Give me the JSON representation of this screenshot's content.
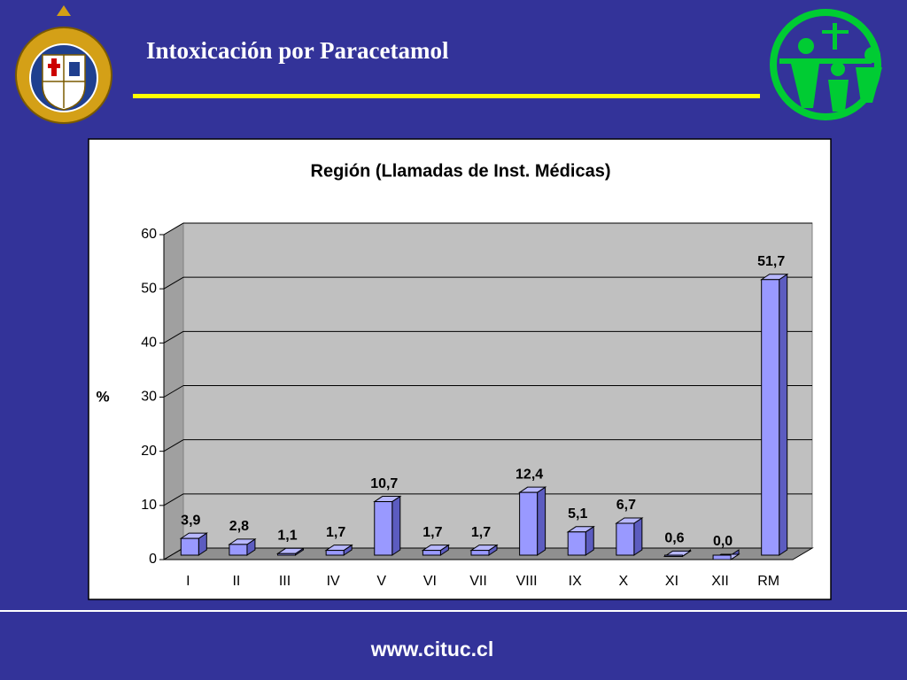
{
  "slide": {
    "title": "Intoxicación por Paracetamol",
    "footer": "www.cituc.cl"
  },
  "chart_data": {
    "type": "bar3d",
    "title": "Región (Llamadas de Inst. Médicas)",
    "y_label": "%",
    "categories": [
      "I",
      "II",
      "III",
      "IV",
      "V",
      "VI",
      "VII",
      "VIII",
      "IX",
      "X",
      "XI",
      "XII",
      "RM"
    ],
    "values": [
      3.9,
      2.8,
      1.1,
      1.7,
      10.7,
      1.7,
      1.7,
      12.4,
      5.1,
      6.7,
      0.6,
      0.0,
      51.7
    ],
    "value_labels": [
      "3,9",
      "2,8",
      "1,1",
      "1,7",
      "10,7",
      "1,7",
      "1,7",
      "12,4",
      "5,1",
      "6,7",
      "0,6",
      "0,0",
      "51,7"
    ],
    "color": "#9999ff",
    "ylim": [
      0,
      60
    ],
    "yticks": [
      0,
      10,
      20,
      30,
      40,
      50,
      60
    ],
    "grid": true
  }
}
